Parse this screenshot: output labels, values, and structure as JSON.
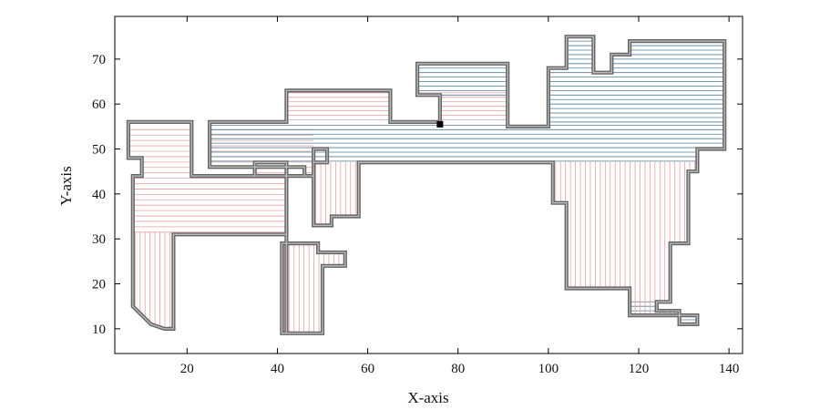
{
  "chart_data": {
    "type": "line",
    "title": "",
    "xlabel": "X-axis",
    "ylabel": "Y-axis",
    "xlim": [
      4,
      143
    ],
    "ylim": [
      4.5,
      79.5
    ],
    "xticks": [
      20,
      40,
      60,
      80,
      100,
      120,
      140
    ],
    "yticks": [
      10,
      20,
      30,
      40,
      50,
      60,
      70
    ],
    "grid": false,
    "legend": "none",
    "colors": {
      "boundary": "#666666",
      "boundary_inner": "#bdbdbd",
      "coverage_a": "#e8a0a4",
      "coverage_b": "#4f7f9a",
      "marker": "#000000"
    },
    "series": [
      {
        "role": "boundary",
        "x": [
          7,
          7,
          10,
          10,
          8,
          8,
          12,
          15,
          17,
          17,
          31,
          31,
          42,
          42,
          41,
          41,
          49,
          49,
          55,
          55,
          50,
          50,
          42,
          42,
          35,
          35,
          46,
          46,
          25,
          25,
          42,
          42,
          65,
          65,
          76,
          76,
          71,
          71,
          91,
          91,
          100,
          100,
          104,
          104,
          110,
          110,
          114,
          114,
          118,
          118,
          139,
          139,
          133,
          133,
          131,
          131,
          127,
          127,
          124,
          124,
          129,
          129,
          133,
          133,
          118,
          118,
          114,
          114,
          109,
          109,
          104,
          104,
          101,
          101,
          100,
          100,
          58,
          58,
          52,
          52,
          48,
          48,
          51,
          51,
          48,
          48,
          21,
          21
        ],
        "y": [
          56,
          48,
          48,
          44,
          44,
          15,
          11,
          10,
          10,
          31,
          31,
          31,
          31,
          9,
          9,
          29,
          29,
          27,
          27,
          24,
          24,
          9,
          9,
          47,
          47,
          44,
          44,
          46,
          46,
          56,
          56,
          63,
          63,
          56,
          56,
          62,
          62,
          69,
          69,
          55,
          55,
          68,
          68,
          75,
          75,
          67,
          67,
          71,
          71,
          74,
          74,
          50,
          50,
          45,
          45,
          29,
          29,
          16,
          16,
          14,
          14,
          11,
          11,
          13,
          13,
          19,
          19,
          19,
          19,
          19,
          19,
          38,
          38,
          47,
          47,
          47,
          47,
          35,
          35,
          33,
          33,
          50,
          50,
          47,
          47,
          44,
          44,
          56
        ]
      },
      {
        "role": "marker",
        "x": [
          76
        ],
        "y": [
          55.5
        ]
      }
    ]
  }
}
